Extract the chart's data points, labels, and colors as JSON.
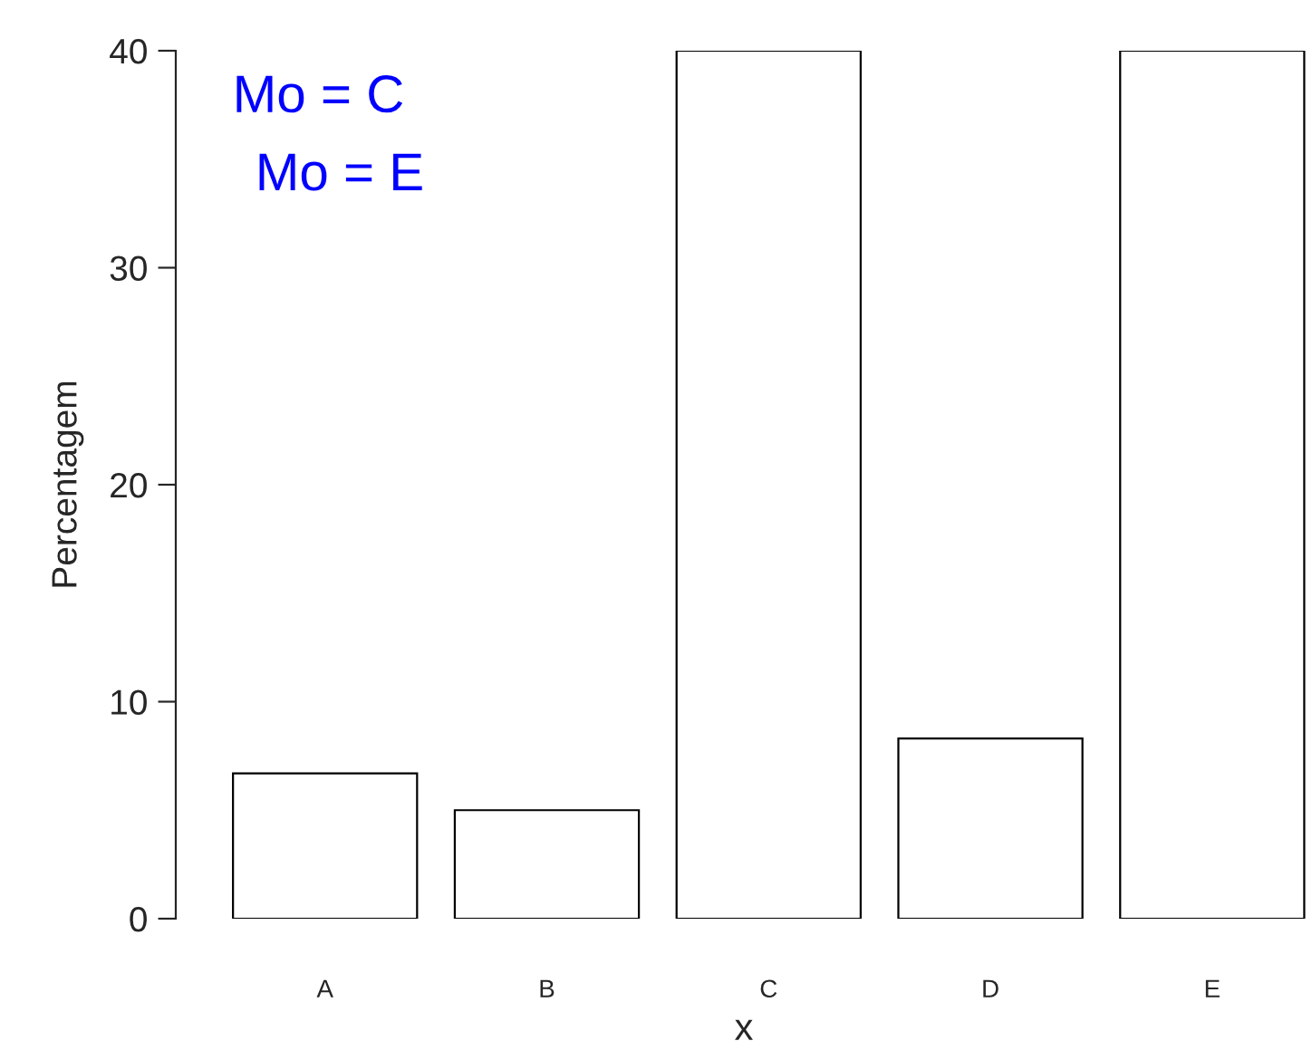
{
  "chart_data": {
    "type": "bar",
    "categories": [
      "A",
      "B",
      "C",
      "D",
      "E"
    ],
    "values": [
      6.7,
      5,
      40,
      8.3,
      40
    ],
    "color": "#ffffff",
    "xlabel": "x",
    "ylabel": "Percentagem",
    "ylim": [
      0,
      40
    ],
    "yticks": [
      0,
      10,
      20,
      30,
      40
    ],
    "grid": false,
    "legend": false,
    "annotations": [
      "Mo = C",
      "Mo = E"
    ]
  }
}
